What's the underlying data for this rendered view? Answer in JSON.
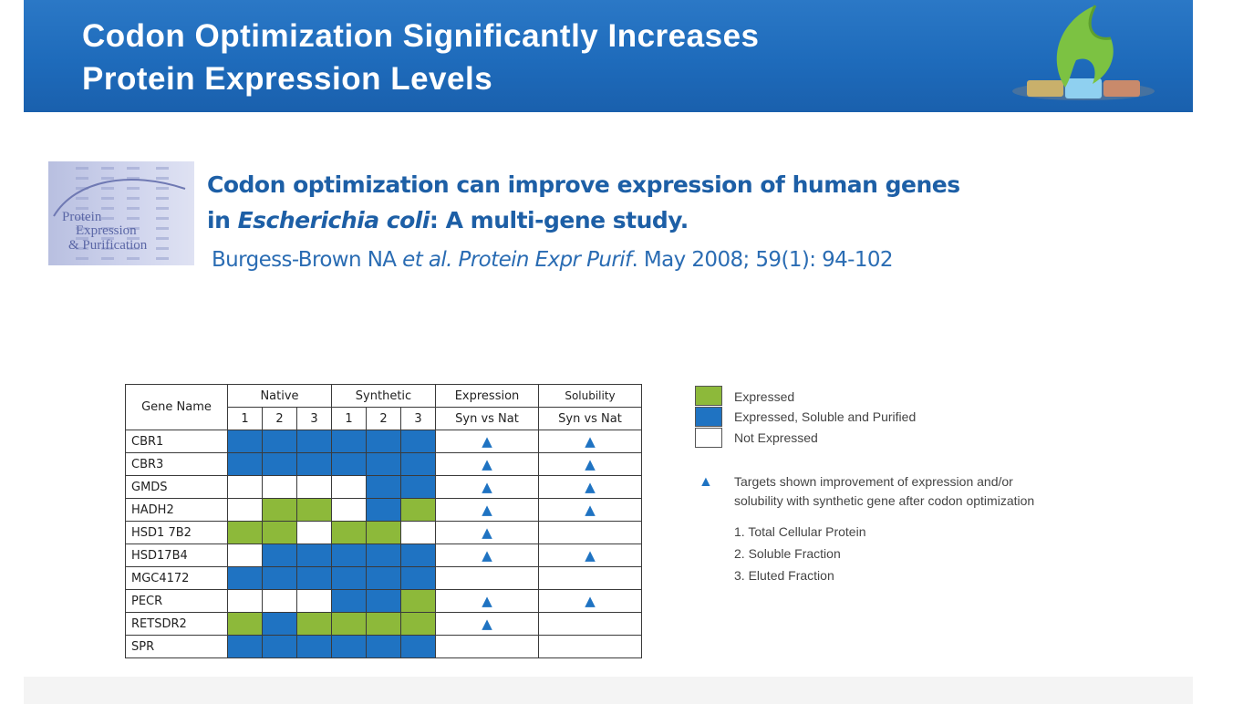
{
  "header": {
    "title_line1": "Codon Optimization Significantly Increases",
    "title_line2": "Protein Expression Levels",
    "logo_icon": "company-logo-icon"
  },
  "reference": {
    "cover_text": [
      "Protein",
      "Expression",
      "& Purification"
    ],
    "title_part1": "Codon optimization can improve expression of human genes",
    "title_part2_prefix": "in ",
    "title_part2_italic": "Escherichia coli",
    "title_part2_suffix": ": A multi-gene study.",
    "cite_authors": "Burgess-Brown NA ",
    "cite_etal": "et al.",
    "cite_journal": " Protein Expr Purif",
    "cite_details": ". May 2008; 59(1): 94-102"
  },
  "table": {
    "gene_header": "Gene Name",
    "native_header": "Native",
    "synthetic_header": "Synthetic",
    "expression_header": "Expression",
    "solubility_header": "Solubility",
    "sub_labels": [
      "1",
      "2",
      "3",
      "1",
      "2",
      "3"
    ],
    "expression_sub": "Syn vs Nat",
    "solubility_sub": "Syn vs Nat",
    "triangle": "▲",
    "rows": [
      {
        "name": "CBR1",
        "cells": [
          "B",
          "B",
          "B",
          "B",
          "B",
          "B"
        ],
        "exp": true,
        "sol": true
      },
      {
        "name": "CBR3",
        "cells": [
          "B",
          "B",
          "B",
          "B",
          "B",
          "B"
        ],
        "exp": true,
        "sol": true
      },
      {
        "name": "GMDS",
        "cells": [
          "W",
          "W",
          "W",
          "W",
          "B",
          "B"
        ],
        "exp": true,
        "sol": true
      },
      {
        "name": "HADH2",
        "cells": [
          "W",
          "G",
          "G",
          "W",
          "B",
          "G"
        ],
        "exp": true,
        "sol": true
      },
      {
        "name": "HSD1 7B2",
        "cells": [
          "G",
          "G",
          "W",
          "G",
          "G",
          "W"
        ],
        "exp": true,
        "sol": false
      },
      {
        "name": "HSD17B4",
        "cells": [
          "W",
          "B",
          "B",
          "B",
          "B",
          "B"
        ],
        "exp": true,
        "sol": true
      },
      {
        "name": "MGC4172",
        "cells": [
          "B",
          "B",
          "B",
          "B",
          "B",
          "B"
        ],
        "exp": false,
        "sol": false
      },
      {
        "name": "PECR",
        "cells": [
          "W",
          "W",
          "W",
          "B",
          "B",
          "G"
        ],
        "exp": true,
        "sol": true
      },
      {
        "name": "RETSDR2",
        "cells": [
          "G",
          "B",
          "G",
          "G",
          "G",
          "G"
        ],
        "exp": true,
        "sol": false
      },
      {
        "name": "SPR",
        "cells": [
          "B",
          "B",
          "B",
          "B",
          "B",
          "B"
        ],
        "exp": false,
        "sol": false
      }
    ]
  },
  "legend": {
    "expressed": "Expressed",
    "soluble": "Expressed, Soluble and Purified",
    "not_expressed": "Not Expressed",
    "note_line1": "Targets shown improvement of expression and/or",
    "note_line2": "solubility with synthetic gene after codon optimization",
    "step1": "1. Total Cellular Protein",
    "step2": "2. Soluble Fraction",
    "step3": "3. Eluted Fraction"
  },
  "colors": {
    "header_blue": "#1e6bbb",
    "expressed_green": "#8db93a",
    "soluble_blue": "#1f73c2",
    "citation_blue": "#1d5fa6"
  }
}
